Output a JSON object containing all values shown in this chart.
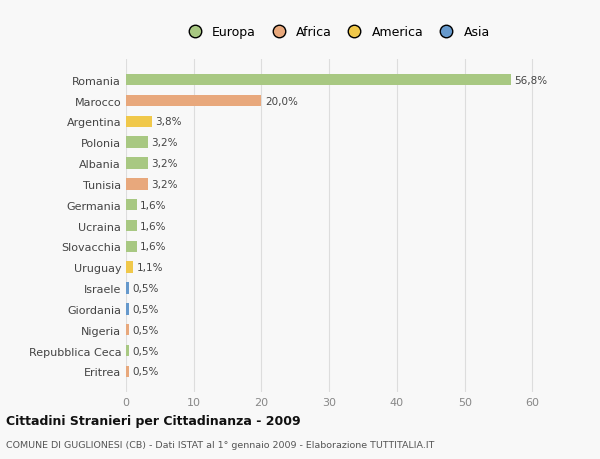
{
  "countries": [
    "Romania",
    "Marocco",
    "Argentina",
    "Polonia",
    "Albania",
    "Tunisia",
    "Germania",
    "Ucraina",
    "Slovacchia",
    "Uruguay",
    "Israele",
    "Giordania",
    "Nigeria",
    "Repubblica Ceca",
    "Eritrea"
  ],
  "values": [
    56.8,
    20.0,
    3.8,
    3.2,
    3.2,
    3.2,
    1.6,
    1.6,
    1.6,
    1.1,
    0.5,
    0.5,
    0.5,
    0.5,
    0.5
  ],
  "labels": [
    "56,8%",
    "20,0%",
    "3,8%",
    "3,2%",
    "3,2%",
    "3,2%",
    "1,6%",
    "1,6%",
    "1,6%",
    "1,1%",
    "0,5%",
    "0,5%",
    "0,5%",
    "0,5%",
    "0,5%"
  ],
  "continents": [
    "Europa",
    "Africa",
    "America",
    "Europa",
    "Europa",
    "Africa",
    "Europa",
    "Europa",
    "Europa",
    "America",
    "Asia",
    "Asia",
    "Africa",
    "Europa",
    "Africa"
  ],
  "colors": {
    "Europa": "#a8c882",
    "Africa": "#e8a87c",
    "America": "#f0c84a",
    "Asia": "#6699cc"
  },
  "legend_order": [
    "Europa",
    "Africa",
    "America",
    "Asia"
  ],
  "title": "Cittadini Stranieri per Cittadinanza - 2009",
  "subtitle": "COMUNE DI GUGLIONESI (CB) - Dati ISTAT al 1° gennaio 2009 - Elaborazione TUTTITALIA.IT",
  "xlim": [
    0,
    62
  ],
  "xticks": [
    0,
    10,
    20,
    30,
    40,
    50,
    60
  ],
  "bg_color": "#f8f8f8",
  "grid_color": "#dddddd",
  "bar_height": 0.55
}
